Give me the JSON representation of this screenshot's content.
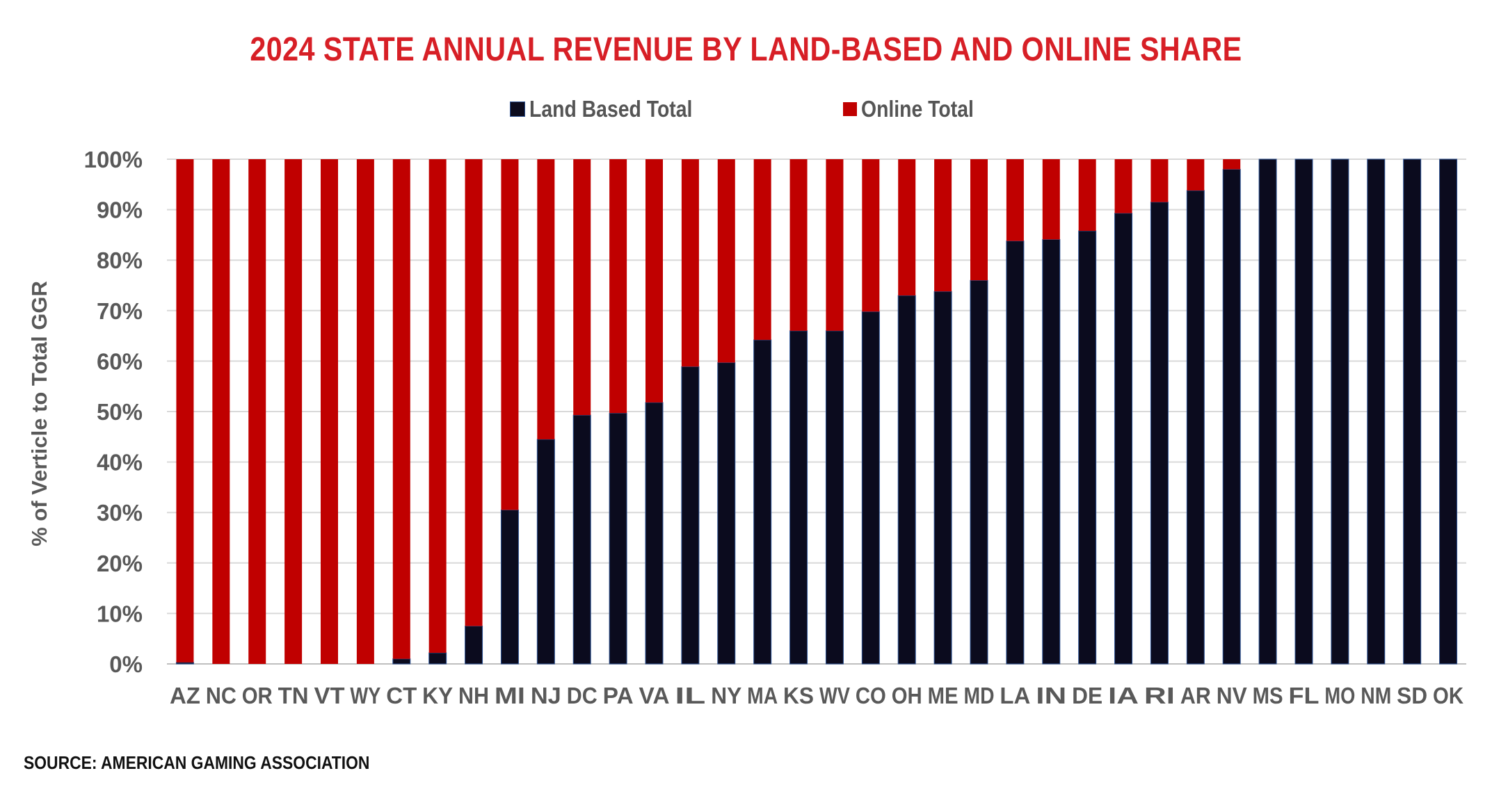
{
  "chart_data": {
    "type": "bar",
    "stacked": true,
    "title": "2024 STATE ANNUAL REVENUE BY LAND-BASED AND ONLINE SHARE",
    "ylabel": "% of Verticle to Total GGR",
    "xlabel": "",
    "ylim": [
      0,
      100
    ],
    "yticks": [
      "0%",
      "10%",
      "20%",
      "30%",
      "40%",
      "50%",
      "60%",
      "70%",
      "80%",
      "90%",
      "100%"
    ],
    "grid": true,
    "legend_position": "top",
    "categories": [
      "AZ",
      "NC",
      "OR",
      "TN",
      "VT",
      "WY",
      "CT",
      "KY",
      "NH",
      "MI",
      "NJ",
      "DC",
      "PA",
      "VA",
      "IL",
      "NY",
      "MA",
      "KS",
      "WV",
      "CO",
      "OH",
      "ME",
      "MD",
      "LA",
      "IN",
      "DE",
      "IA",
      "RI",
      "AR",
      "NV",
      "MS",
      "FL",
      "MO",
      "NM",
      "SD",
      "OK"
    ],
    "series": [
      {
        "name": "Land Based Total",
        "color": "#0b0b1e",
        "values": [
          0.3,
          0,
          0,
          0,
          0,
          0,
          1,
          2.2,
          7.5,
          30.5,
          44.5,
          49.3,
          49.7,
          51.8,
          58.9,
          59.7,
          64.2,
          66,
          66,
          69.8,
          73,
          73.8,
          76,
          83.8,
          84.1,
          85.8,
          89.3,
          91.5,
          93.8,
          98,
          100,
          100,
          100,
          100,
          100,
          100
        ]
      },
      {
        "name": "Online Total",
        "color": "#c00000",
        "values": [
          99.7,
          100,
          100,
          100,
          100,
          100,
          99,
          97.8,
          92.5,
          69.5,
          55.5,
          50.7,
          50.3,
          48.2,
          41.1,
          40.3,
          35.8,
          34,
          34,
          30.2,
          27,
          26.2,
          24,
          16.2,
          15.9,
          14.2,
          10.7,
          8.5,
          6.2,
          2,
          0,
          0,
          0,
          0,
          0,
          0
        ]
      }
    ]
  },
  "source": "SOURCE: AMERICAN GAMING ASSOCIATION"
}
